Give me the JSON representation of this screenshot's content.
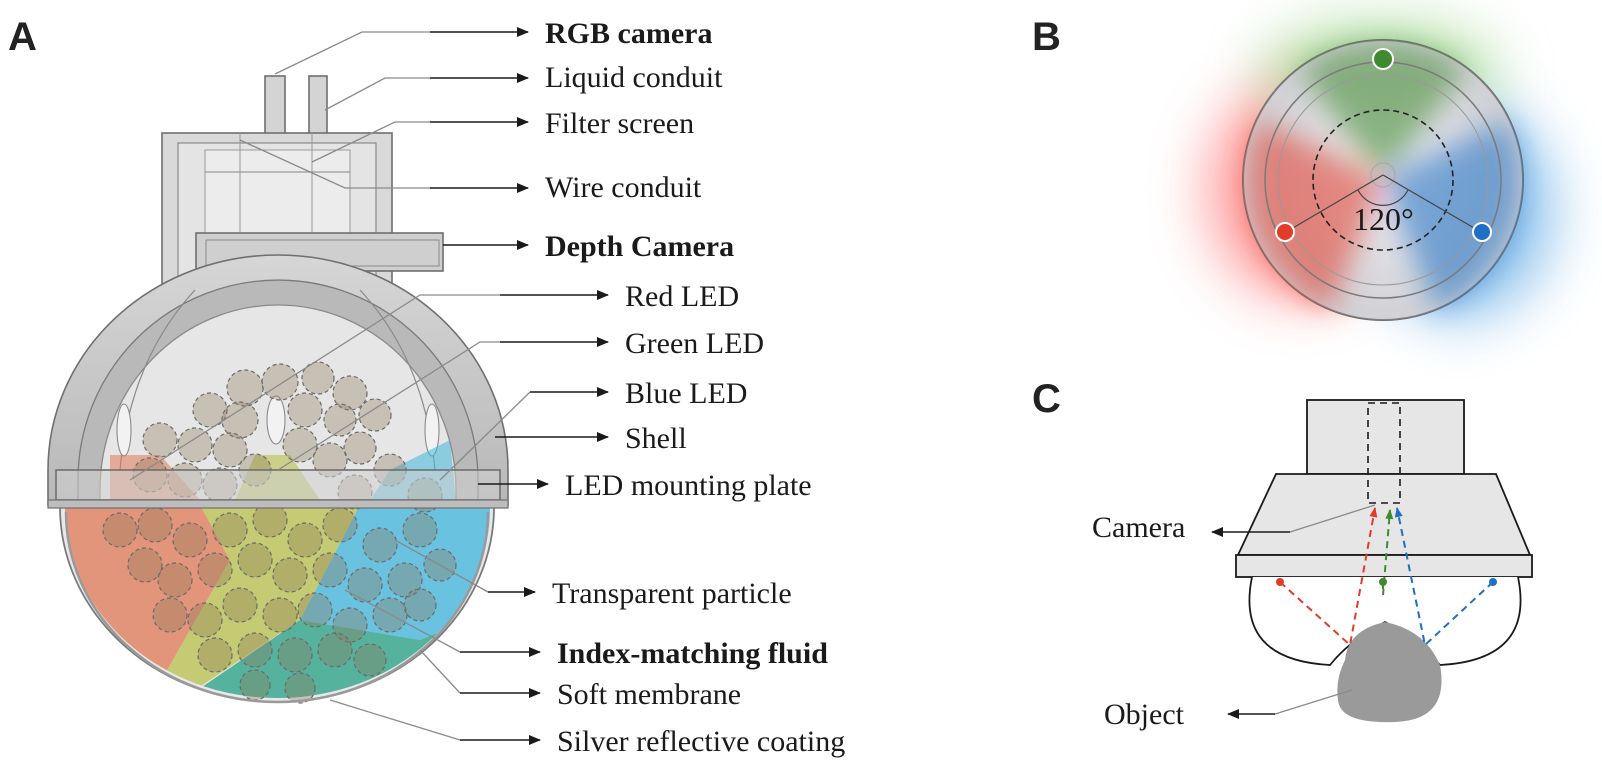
{
  "panels": {
    "a": "A",
    "b": "B",
    "c": "C"
  },
  "panel_a_labels": {
    "rgb_camera": "RGB camera",
    "liquid_conduit": "Liquid conduit",
    "filter_screen": "Filter screen",
    "wire_conduit": "Wire conduit",
    "depth_camera": "Depth Camera",
    "red_led": "Red LED",
    "green_led": "Green LED",
    "blue_led": "Blue LED",
    "shell": "Shell",
    "led_mounting_plate": "LED mounting plate",
    "transparent_particle": "Transparent particle",
    "index_matching_fluid": "Index-matching fluid",
    "soft_membrane": "Soft membrane",
    "silver_reflective_coating": "Silver reflective coating"
  },
  "panel_b": {
    "angle": "120°"
  },
  "panel_c": {
    "camera": "Camera",
    "object": "Object"
  },
  "colors": {
    "red_led": "#e23b2a",
    "green_led": "#3f8a2e",
    "blue_led": "#1f6fc4",
    "shell_gray": "#c8c8c8"
  }
}
